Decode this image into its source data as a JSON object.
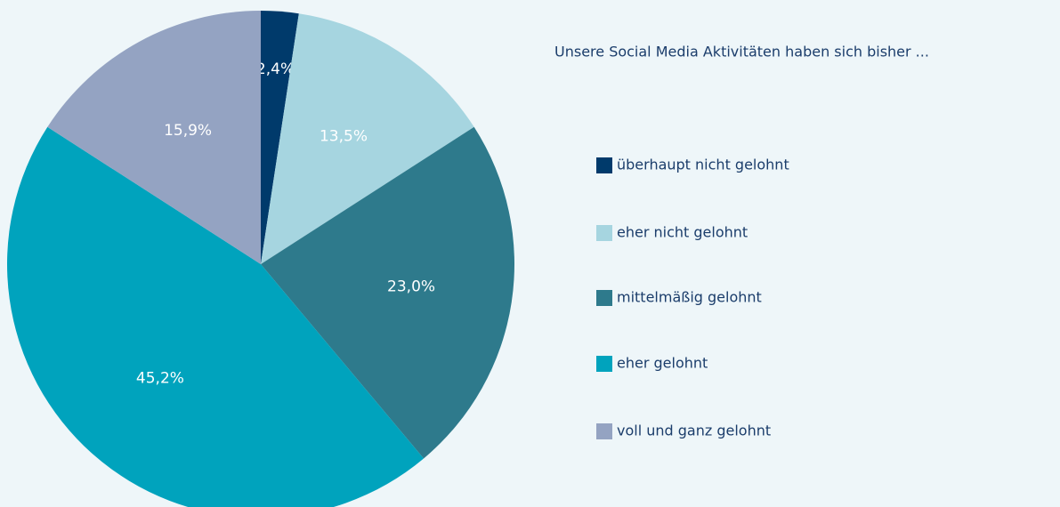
{
  "chart_data": {
    "type": "pie",
    "legend_title": "Unsere Social Media Aktivitäten haben sich bisher ...",
    "categories": [
      "überhaupt nicht gelohnt",
      "eher nicht gelohnt",
      "mittelmäßig gelohnt",
      "eher gelohnt",
      "voll und ganz gelohnt"
    ],
    "values": [
      2.4,
      13.5,
      23.0,
      45.2,
      15.9
    ],
    "value_labels": [
      "2,4%",
      "13,5%",
      "23,0%",
      "45,2%",
      "15,9%"
    ],
    "colors": [
      "#003a6b",
      "#a6d5e0",
      "#2e7a8c",
      "#00a3bd",
      "#94a3c2"
    ],
    "legend": "right"
  }
}
